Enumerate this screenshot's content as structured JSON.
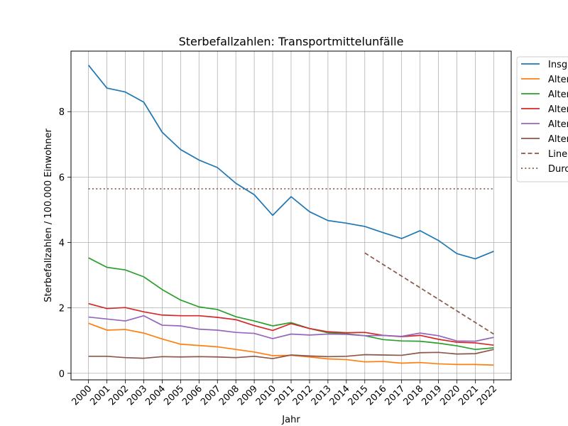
{
  "chart_data": {
    "type": "line",
    "title": "Sterbefallzahlen: Transportmittelunfälle",
    "xlabel": "Jahr",
    "ylabel": "Sterbefallzahlen / 100.000 Einwohner",
    "x": [
      2000,
      2001,
      2002,
      2003,
      2004,
      2005,
      2006,
      2007,
      2008,
      2009,
      2010,
      2011,
      2012,
      2013,
      2014,
      2015,
      2016,
      2017,
      2018,
      2019,
      2020,
      2021,
      2022
    ],
    "xlim": [
      1999.05,
      2022.95
    ],
    "ylim": [
      -0.2,
      9.85
    ],
    "yticks": [
      0,
      2,
      4,
      6,
      8
    ],
    "grid": true,
    "legend_position": "right",
    "series": [
      {
        "name": "Insg",
        "color": "#1f77b4",
        "style": "solid",
        "values": [
          9.42,
          8.72,
          8.6,
          8.29,
          7.37,
          6.84,
          6.52,
          6.29,
          5.81,
          5.46,
          4.83,
          5.4,
          4.94,
          4.67,
          4.59,
          4.49,
          4.3,
          4.12,
          4.36,
          4.06,
          3.66,
          3.5,
          3.73
        ]
      },
      {
        "name": "Alter",
        "color": "#ff7f0e",
        "style": "solid",
        "values": [
          1.53,
          1.32,
          1.34,
          1.23,
          1.05,
          0.89,
          0.85,
          0.81,
          0.73,
          0.65,
          0.54,
          0.55,
          0.5,
          0.44,
          0.42,
          0.35,
          0.36,
          0.31,
          0.33,
          0.29,
          0.27,
          0.27,
          0.25
        ]
      },
      {
        "name": "Alter",
        "color": "#2ca02c",
        "style": "solid",
        "values": [
          3.53,
          3.24,
          3.16,
          2.95,
          2.56,
          2.24,
          2.03,
          1.95,
          1.73,
          1.6,
          1.45,
          1.55,
          1.37,
          1.24,
          1.21,
          1.15,
          1.03,
          0.99,
          0.98,
          0.92,
          0.84,
          0.73,
          0.78
        ]
      },
      {
        "name": "Alter",
        "color": "#d62728",
        "style": "solid",
        "values": [
          2.13,
          1.98,
          2.01,
          1.88,
          1.78,
          1.76,
          1.76,
          1.71,
          1.64,
          1.46,
          1.31,
          1.52,
          1.37,
          1.27,
          1.24,
          1.25,
          1.16,
          1.12,
          1.16,
          1.04,
          0.95,
          0.93,
          0.86
        ]
      },
      {
        "name": "Alter",
        "color": "#9467bd",
        "style": "solid",
        "values": [
          1.72,
          1.66,
          1.6,
          1.76,
          1.47,
          1.45,
          1.35,
          1.32,
          1.25,
          1.22,
          1.06,
          1.2,
          1.17,
          1.2,
          1.19,
          1.15,
          1.16,
          1.13,
          1.23,
          1.15,
          0.99,
          0.98,
          1.1
        ]
      },
      {
        "name": "Alter",
        "color": "#8c564b",
        "style": "solid",
        "values": [
          0.52,
          0.52,
          0.48,
          0.46,
          0.51,
          0.5,
          0.51,
          0.5,
          0.48,
          0.52,
          0.45,
          0.56,
          0.53,
          0.51,
          0.52,
          0.57,
          0.56,
          0.55,
          0.63,
          0.64,
          0.59,
          0.6,
          0.73
        ]
      },
      {
        "name": "Line",
        "color": "#8c564b",
        "style": "dashed",
        "x": [
          2015,
          2022
        ],
        "values": [
          3.68,
          1.2
        ]
      },
      {
        "name": "Durc",
        "color": "#8c564b",
        "style": "dotted",
        "x": [
          2000,
          2022
        ],
        "values": [
          5.64,
          5.64
        ]
      }
    ]
  }
}
